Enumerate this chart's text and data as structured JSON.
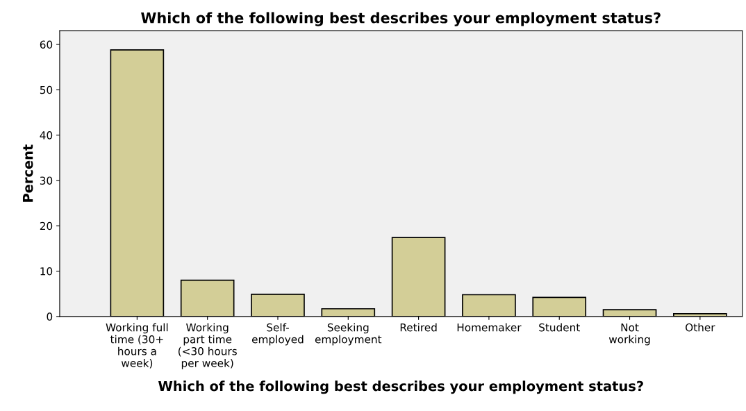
{
  "chart_data": {
    "type": "bar",
    "title": "Which of the following best describes your employment status?",
    "xlabel": "Which of the following best describes your employment status?",
    "ylabel": "Percent",
    "categories": [
      "Working full\ntime (30+\nhours a\nweek)",
      "Working\npart time\n(<30 hours\nper week)",
      "Self-\nemployed",
      "Seeking\nemployment",
      "Retired",
      "Homemaker",
      "Student",
      "Not\nworking",
      "Other"
    ],
    "values": [
      58.8,
      8.0,
      4.9,
      1.7,
      17.4,
      4.8,
      4.2,
      1.5,
      0.6
    ],
    "color": "#d3ce97",
    "ylim": [
      0,
      63
    ],
    "yticks": [
      0,
      10,
      20,
      30,
      40,
      50,
      60
    ],
    "grid": false
  }
}
